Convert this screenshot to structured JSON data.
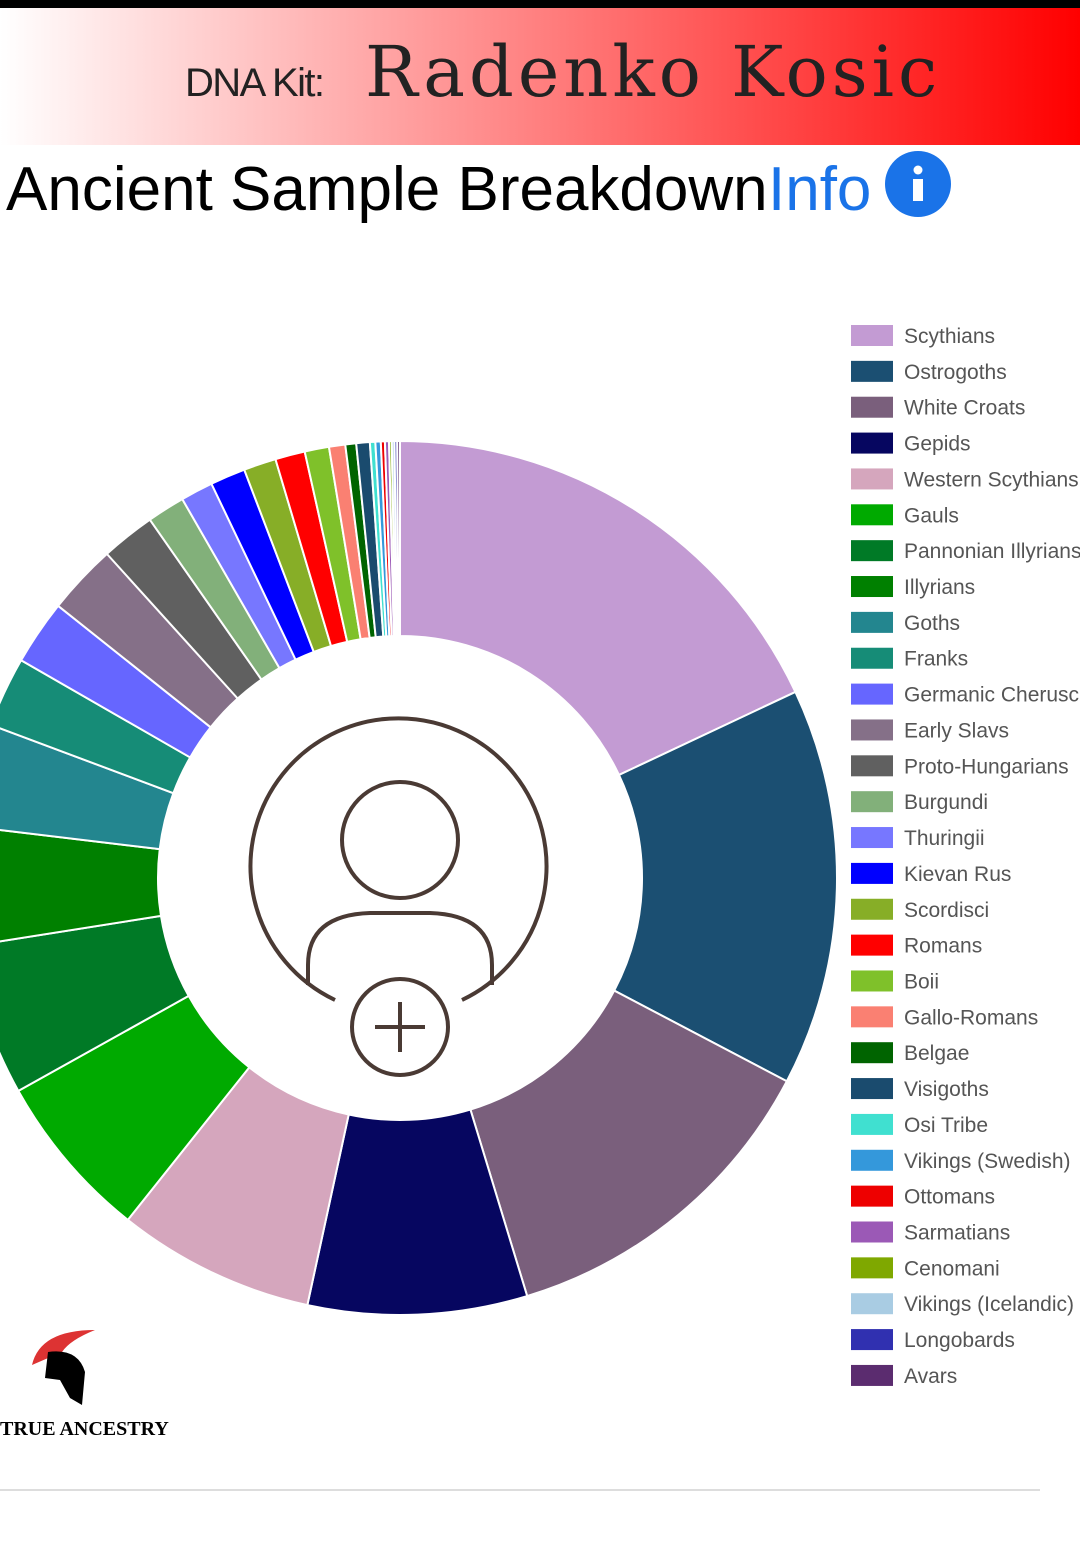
{
  "header": {
    "label": "DNA Kit:",
    "name": "Radenko Kosic"
  },
  "title": "Ancient Sample Breakdown",
  "info": "Info",
  "logo": "TRUE ANCESTRY",
  "chart_data": {
    "type": "donut",
    "categories": [
      "Scythians",
      "Ostrogoths",
      "White Croats",
      "Gepids",
      "Western Scythians",
      "Gauls",
      "Pannonian Illyrians",
      "Illyrians",
      "Goths",
      "Franks",
      "Germanic Cherusci",
      "Early Slavs",
      "Proto-Hungarians",
      "Burgundi",
      "Thuringii",
      "Kievan Rus",
      "Scordisci",
      "Romans",
      "Boii",
      "Gallo-Romans",
      "Belgae",
      "Visigoths",
      "Osi Tribe",
      "Vikings (Swedish)",
      "Ottomans",
      "Sarmatians",
      "Cenomani",
      "Vikings (Icelandic)",
      "Longobards",
      "Avars"
    ],
    "values": [
      18,
      14.7,
      12.6,
      8.1,
      7.3,
      6.2,
      5.6,
      4.4,
      3.8,
      2.6,
      2.4,
      2.6,
      2.0,
      1.4,
      1.2,
      1.3,
      1.2,
      1.1,
      0.9,
      0.6,
      0.4,
      0.5,
      0.2,
      0.2,
      0.15,
      0.15,
      0.1,
      0.1,
      0.1,
      0.1
    ],
    "colors": [
      "#c39bd3",
      "#1b4f72",
      "#7a5f7c",
      "#060660",
      "#d5a6bd",
      "#00aa00",
      "#007a26",
      "#008000",
      "#23868f",
      "#168c77",
      "#6666ff",
      "#857088",
      "#606060",
      "#82b07a",
      "#7777ff",
      "#0000ff",
      "#87ae27",
      "#ff0000",
      "#7fc12a",
      "#fa8072",
      "#006400",
      "#1a4b6e",
      "#40e0d0",
      "#3498db",
      "#ee0000",
      "#9b59b6",
      "#7fa800",
      "#a9cce3",
      "#3030b0",
      "#5b2c6f"
    ],
    "legend": "right"
  }
}
